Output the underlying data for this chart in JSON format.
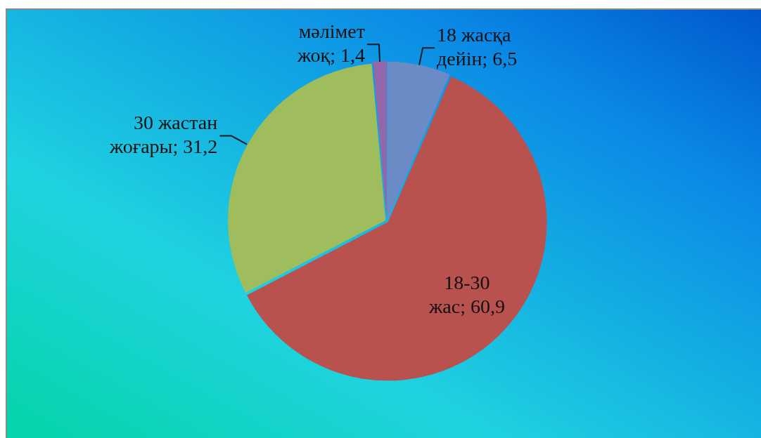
{
  "chart_data": {
    "type": "pie",
    "categories": [
      "18 жасқа дейін",
      "18-30 жас",
      "30 жастан жоғары",
      "мәлімет жоқ"
    ],
    "values": [
      6.5,
      60.9,
      31.2,
      1.4
    ],
    "colors": [
      "#6a8bc6",
      "#b9514e",
      "#a0bd5e",
      "#9467ab"
    ],
    "value_labels": [
      "6,5",
      "60,9",
      "31,2",
      "1,4"
    ]
  }
}
